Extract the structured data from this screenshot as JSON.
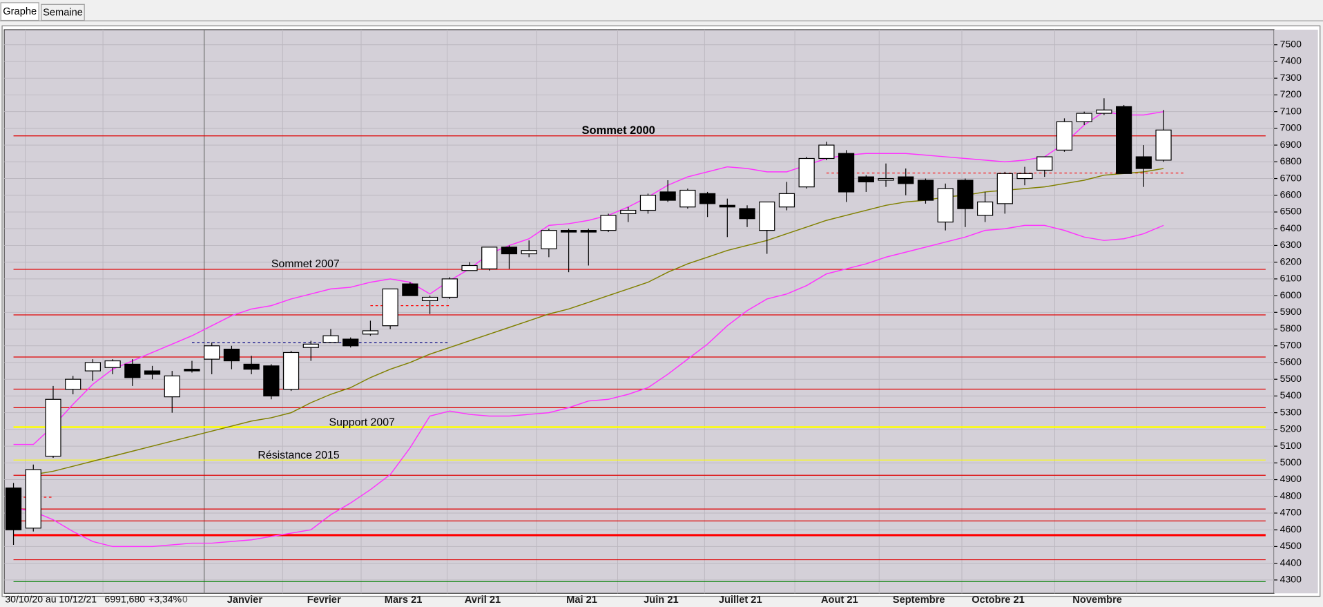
{
  "tabs": [
    "Graphe",
    "Semaine"
  ],
  "chart_data": {
    "type": "candlestick",
    "categories": [
      null,
      null,
      null,
      null,
      null,
      null,
      null,
      null,
      null,
      null,
      null,
      null,
      "Janvier",
      null,
      null,
      null,
      "Fevrier",
      null,
      null,
      null,
      "Mars 21",
      null,
      null,
      null,
      "Avril 21",
      null,
      null,
      null,
      null,
      "Mai 21",
      null,
      null,
      null,
      "Juin 21",
      null,
      null,
      null,
      "Juillet 21",
      null,
      null,
      null,
      null,
      "Aout 21",
      null,
      null,
      null,
      "Septembre",
      null,
      null,
      null,
      "Octobre 21",
      null,
      null,
      null,
      null,
      "Novembre",
      null,
      null,
      null
    ],
    "open": [
      4850,
      4610,
      5040,
      5440,
      5550,
      5570,
      5590,
      5550,
      5395,
      5560,
      5620,
      5680,
      5590,
      5580,
      5440,
      5690,
      5720,
      5740,
      5770,
      5820,
      6070,
      5970,
      5990,
      6150,
      6160,
      6290,
      6250,
      6280,
      6390,
      6390,
      6390,
      6490,
      6510,
      6620,
      6530,
      6610,
      6540,
      6520,
      6390,
      6530,
      6650,
      6820,
      6850,
      6710,
      6690,
      6710,
      6690,
      6440,
      6690,
      6480,
      6550,
      6700,
      6750,
      6870,
      7040,
      7090,
      7130,
      6830,
      6810
    ],
    "high": [
      4880,
      4990,
      5460,
      5520,
      5620,
      5620,
      5620,
      5580,
      5550,
      5610,
      5720,
      5700,
      5640,
      5590,
      5670,
      5730,
      5800,
      5750,
      5850,
      6040,
      6080,
      6000,
      6110,
      6200,
      6290,
      6300,
      6330,
      6400,
      6400,
      6400,
      6490,
      6530,
      6610,
      6690,
      6640,
      6620,
      6580,
      6540,
      6560,
      6680,
      6830,
      6920,
      6870,
      6720,
      6790,
      6760,
      6700,
      6670,
      6700,
      6620,
      6740,
      6770,
      6830,
      7060,
      7100,
      7180,
      7140,
      6900,
      7110
    ],
    "low": [
      4510,
      4590,
      5030,
      5410,
      5490,
      5530,
      5460,
      5500,
      5300,
      5540,
      5530,
      5560,
      5530,
      5380,
      5430,
      5610,
      5720,
      5690,
      5760,
      5800,
      6000,
      5890,
      5980,
      6150,
      6150,
      6160,
      6230,
      6230,
      6140,
      6180,
      6380,
      6440,
      6490,
      6560,
      6520,
      6470,
      6350,
      6410,
      6250,
      6510,
      6640,
      6810,
      6560,
      6620,
      6650,
      6600,
      6550,
      6390,
      6410,
      6440,
      6490,
      6660,
      6710,
      6860,
      7020,
      7080,
      6730,
      6650,
      6800
    ],
    "close": [
      4600,
      4960,
      5380,
      5500,
      5600,
      5610,
      5510,
      5530,
      5520,
      5550,
      5700,
      5610,
      5560,
      5400,
      5660,
      5710,
      5760,
      5700,
      5790,
      6040,
      6000,
      5990,
      6100,
      6180,
      6290,
      6250,
      6270,
      6390,
      6380,
      6380,
      6480,
      6510,
      6600,
      6570,
      6630,
      6550,
      6530,
      6460,
      6560,
      6610,
      6820,
      6900,
      6620,
      6680,
      6700,
      6670,
      6570,
      6640,
      6520,
      6560,
      6730,
      6730,
      6830,
      7040,
      7090,
      7110,
      6730,
      6760,
      6990
    ],
    "up_color": "#ffffff",
    "down_color": "#000000",
    "lines": [
      {
        "color": "#ff33ff",
        "values": [
          5110,
          5110,
          5220,
          5350,
          5470,
          5560,
          5610,
          5660,
          5710,
          5760,
          5820,
          5880,
          5920,
          5940,
          5980,
          6010,
          6040,
          6050,
          6080,
          6100,
          6080,
          6010,
          6090,
          6160,
          6250,
          6300,
          6340,
          6420,
          6430,
          6450,
          6480,
          6530,
          6590,
          6660,
          6710,
          6740,
          6770,
          6760,
          6740,
          6740,
          6780,
          6820,
          6840,
          6850,
          6850,
          6850,
          6840,
          6830,
          6820,
          6810,
          6800,
          6810,
          6830,
          6910,
          7020,
          7100,
          7080,
          7080,
          7100
        ]
      },
      {
        "color": "#ff33ff",
        "values": [
          4730,
          4710,
          4660,
          4590,
          4530,
          4500,
          4500,
          4500,
          4510,
          4520,
          4520,
          4530,
          4540,
          4560,
          4580,
          4600,
          4690,
          4760,
          4840,
          4930,
          5090,
          5280,
          5310,
          5290,
          5280,
          5280,
          5290,
          5300,
          5330,
          5370,
          5380,
          5410,
          5450,
          5530,
          5620,
          5710,
          5820,
          5910,
          5980,
          6010,
          6060,
          6130,
          6160,
          6190,
          6230,
          6260,
          6290,
          6320,
          6350,
          6390,
          6400,
          6420,
          6420,
          6390,
          6350,
          6330,
          6340,
          6370,
          6420
        ]
      },
      {
        "color": "#808000",
        "values": [
          null,
          4930,
          4950,
          4980,
          5010,
          5040,
          5070,
          5100,
          5130,
          5160,
          5190,
          5220,
          5250,
          5270,
          5300,
          5360,
          5410,
          5450,
          5510,
          5560,
          5600,
          5650,
          5690,
          5730,
          5770,
          5810,
          5850,
          5890,
          5920,
          5960,
          6000,
          6040,
          6080,
          6140,
          6190,
          6230,
          6270,
          6300,
          6330,
          6370,
          6410,
          6450,
          6480,
          6510,
          6540,
          6560,
          6570,
          6590,
          6600,
          6620,
          6630,
          6640,
          6650,
          6670,
          6690,
          6720,
          6730,
          6740,
          6760
        ]
      }
    ],
    "levels": [
      {
        "value": 6955,
        "color": "#e00000",
        "width": 1
      },
      {
        "value": 6157,
        "color": "#e00000",
        "width": 1
      },
      {
        "value": 5885,
        "color": "#e00000",
        "width": 1
      },
      {
        "value": 5633,
        "color": "#e00000",
        "width": 1
      },
      {
        "value": 5441,
        "color": "#e00000",
        "width": 1
      },
      {
        "value": 5330,
        "color": "#e00000",
        "width": 1
      },
      {
        "value": 5214,
        "color": "#ffff00",
        "width": 2
      },
      {
        "value": 5017,
        "color": "#ffff00",
        "width": 1
      },
      {
        "value": 4926,
        "color": "#e00000",
        "width": 1
      },
      {
        "value": 4724,
        "color": "#e00000",
        "width": 1
      },
      {
        "value": 4653,
        "color": "#e00000",
        "width": 1
      },
      {
        "value": 4568,
        "color": "#ff0000",
        "width": 2.5
      },
      {
        "value": 4421,
        "color": "#e00000",
        "width": 1
      },
      {
        "value": 4290,
        "color": "#008000",
        "width": 1
      }
    ],
    "dashed_levels": [
      {
        "value": 4795,
        "color": "#ff0000",
        "start": 0,
        "end": 2
      },
      {
        "value": 5718,
        "color": "#000080",
        "start": 9,
        "end": 22
      },
      {
        "value": 5940,
        "color": "#ff0000",
        "start": 18,
        "end": 22
      },
      {
        "value": 6733,
        "color": "#ff0000",
        "start": 41,
        "end": 59
      }
    ],
    "annotations": [
      {
        "text": "Sommet 2000",
        "bold": true
      },
      {
        "text": "Sommet 2007",
        "bold": false
      },
      {
        "text": "Support 2007",
        "bold": false
      },
      {
        "text": "Résistance 2015",
        "bold": false
      }
    ],
    "info": [
      "30/10/20 au 10/12/21",
      "6991,680",
      "+3,34%",
      "0"
    ],
    "ylim": [
      4220,
      7590
    ],
    "yticks": [
      4300,
      4400,
      4500,
      4600,
      4700,
      4800,
      4900,
      5000,
      5100,
      5200,
      5300,
      5400,
      5500,
      5600,
      5700,
      5800,
      5900,
      6000,
      6100,
      6200,
      6300,
      6400,
      6500,
      6600,
      6700,
      6800,
      6900,
      7000,
      7100,
      7200,
      7300,
      7400,
      7500
    ],
    "grid": true
  }
}
